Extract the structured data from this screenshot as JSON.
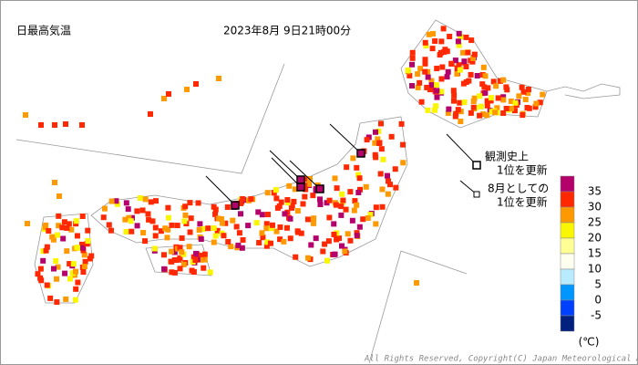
{
  "header": {
    "title": "日最高気温",
    "datetime": "2023年8月 9日21時00分"
  },
  "legend": {
    "record_all_time": [
      "観測史上",
      "1位を更新"
    ],
    "record_month": [
      "8月としての",
      "1位を更新"
    ]
  },
  "scale": {
    "labels": [
      35,
      30,
      25,
      20,
      15,
      10,
      5,
      0,
      -5
    ],
    "colors": [
      "#b4006a",
      "#ff2800",
      "#ff9900",
      "#faf500",
      "#ffff96",
      "#fffff0",
      "#b9ebff",
      "#0096ff",
      "#0041ff",
      "#002080"
    ],
    "unit": "(℃)"
  },
  "copyright": "All Rights Reserved, Copyright(C) Japan Meteorological Agen"
}
